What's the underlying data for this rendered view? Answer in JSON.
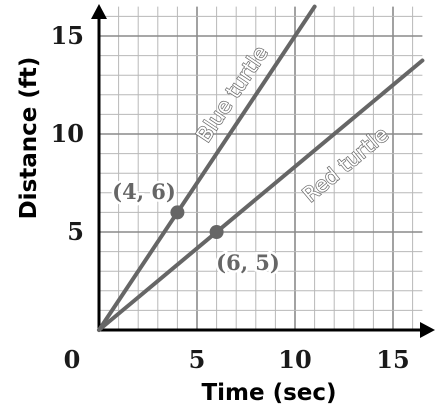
{
  "chart_data": {
    "type": "line",
    "xlabel": "Time (sec)",
    "ylabel": "Distance (ft)",
    "xlim": [
      0,
      16.5
    ],
    "ylim": [
      0,
      16.5
    ],
    "x_ticks": [
      0,
      5,
      10,
      15
    ],
    "y_ticks": [
      5,
      10,
      15
    ],
    "origin_label": "0",
    "grid": true,
    "series": [
      {
        "name": "Blue turtle",
        "x": [
          0,
          11
        ],
        "y": [
          0,
          16.5
        ],
        "color": "#666666"
      },
      {
        "name": "Red turtle",
        "x": [
          0,
          16.5
        ],
        "y": [
          0,
          13.75
        ],
        "color": "#666666"
      }
    ],
    "points": [
      {
        "x": 4,
        "y": 6,
        "label": "(4, 6)"
      },
      {
        "x": 6,
        "y": 5,
        "label": "(6, 5)"
      }
    ]
  }
}
